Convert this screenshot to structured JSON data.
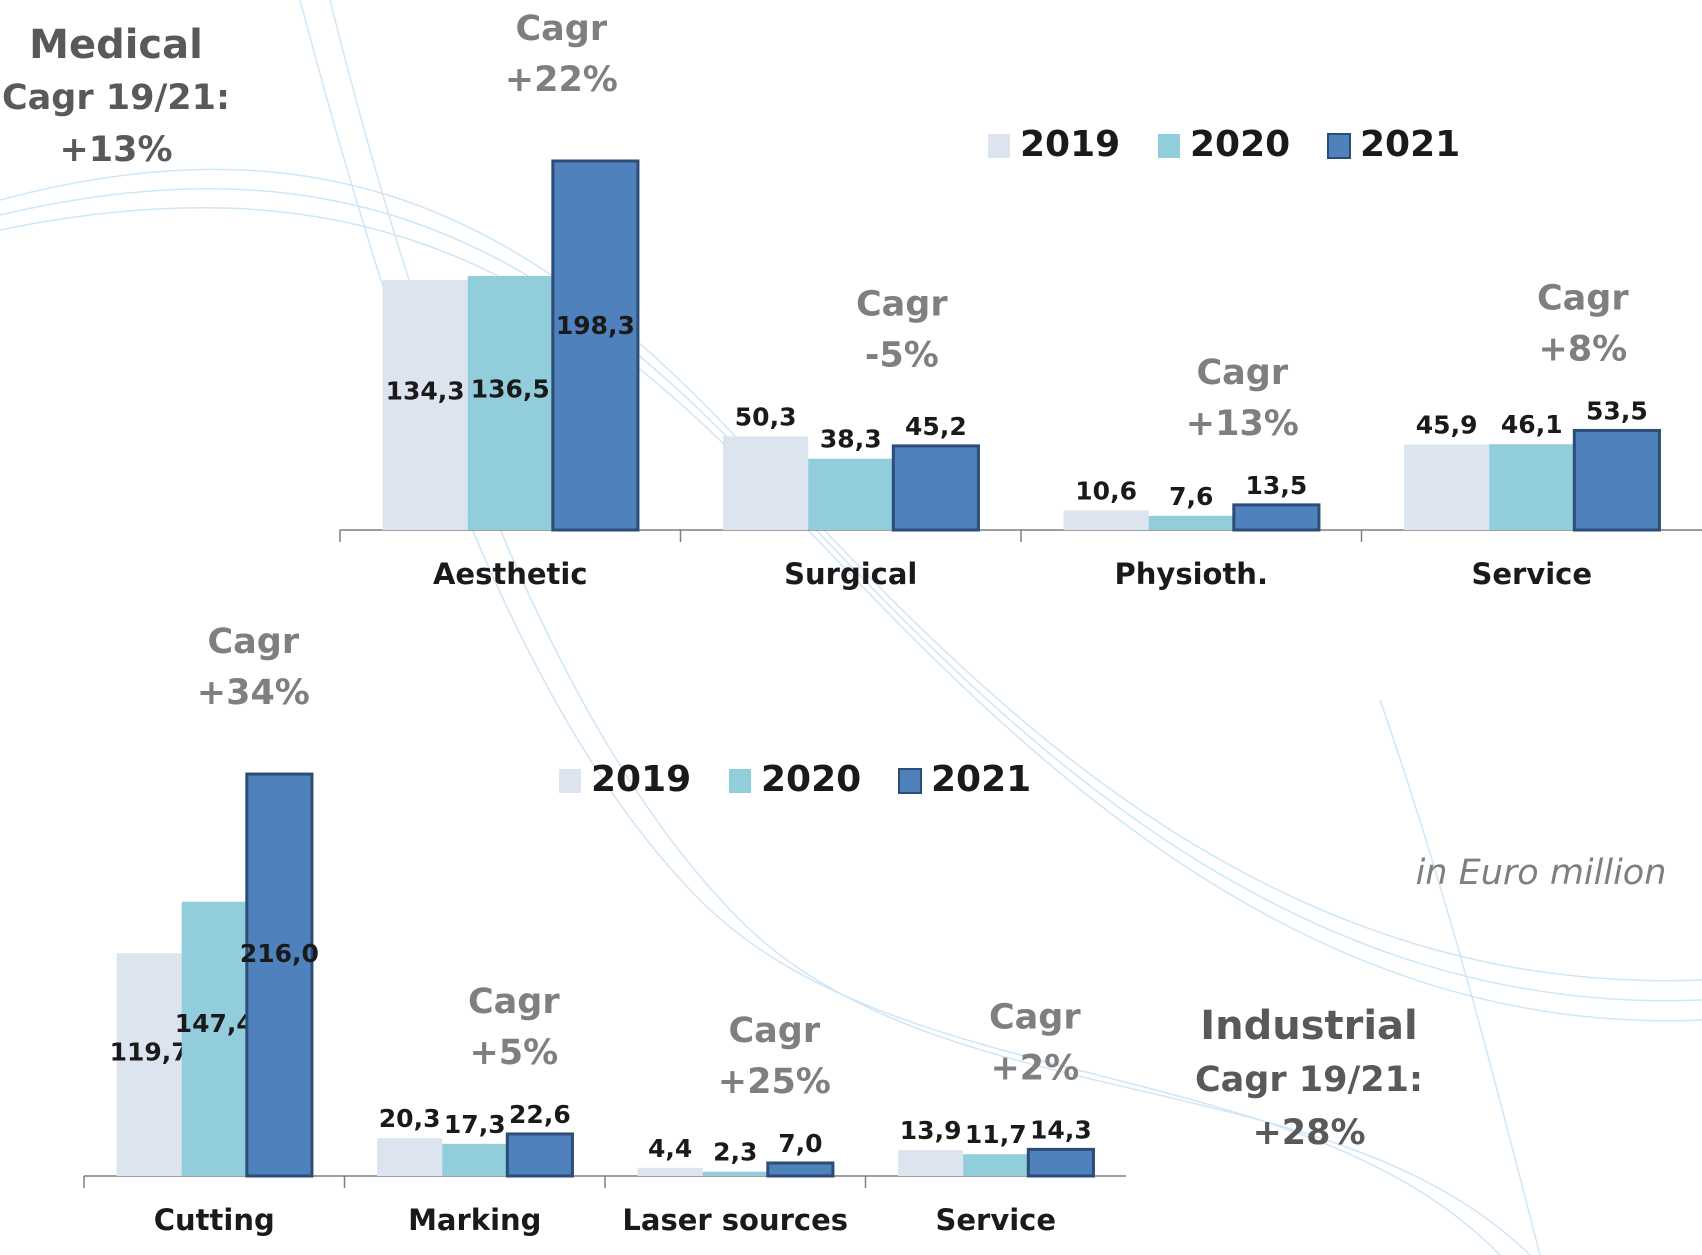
{
  "chart_data": [
    {
      "type": "bar",
      "title": "Medical",
      "subtitle": [
        "Cagr 19/21:",
        "+13%"
      ],
      "categories": [
        "Aesthetic",
        "Surgical",
        "Physioth.",
        "Service"
      ],
      "category_notes": [
        [
          "Cagr",
          "+22%"
        ],
        [
          "Cagr",
          "-5%"
        ],
        [
          "Cagr",
          "+13%"
        ],
        [
          "Cagr",
          "+8%"
        ]
      ],
      "series": [
        {
          "name": "2019",
          "color": "#dce4f0",
          "values": [
            134.3,
            50.3,
            10.6,
            45.9
          ],
          "value_labels": [
            "134,3",
            "50,3",
            "10,6",
            "45,9"
          ]
        },
        {
          "name": "2020",
          "color": "#92cddc",
          "values": [
            136.5,
            38.3,
            7.6,
            46.1
          ],
          "value_labels": [
            "136,5",
            "38,3",
            "7,6",
            "46,1"
          ]
        },
        {
          "name": "2021",
          "color": "#4f81bd",
          "values": [
            198.3,
            45.2,
            13.5,
            53.5
          ],
          "value_labels": [
            "198,3",
            "45,2",
            "13,5",
            "53,5"
          ]
        }
      ],
      "ylim": [
        0,
        230
      ],
      "legend": "top-right"
    },
    {
      "type": "bar",
      "title": "Industrial",
      "subtitle": [
        "Cagr 19/21:",
        "+28%"
      ],
      "note": "in Euro million",
      "categories": [
        "Cutting",
        "Marking",
        "Laser sources",
        "Service"
      ],
      "category_notes": [
        [
          "Cagr",
          "+34%"
        ],
        [
          "Cagr",
          "+5%"
        ],
        [
          "Cagr",
          "+25%"
        ],
        [
          "Cagr",
          "+2%"
        ]
      ],
      "series": [
        {
          "name": "2019",
          "color": "#dce4f0",
          "values": [
            119.7,
            20.3,
            4.4,
            13.9
          ],
          "value_labels": [
            "119,7",
            "20,3",
            "4,4",
            "13,9"
          ]
        },
        {
          "name": "2020",
          "color": "#92cddc",
          "values": [
            147.4,
            17.3,
            2.3,
            11.7
          ],
          "value_labels": [
            "147,4",
            "17,3",
            "2,3",
            "11,7"
          ]
        },
        {
          "name": "2021",
          "color": "#4f81bd",
          "values": [
            216.0,
            22.6,
            7.0,
            14.3
          ],
          "value_labels": [
            "216,0",
            "22,6",
            "7,0",
            "14,3"
          ]
        }
      ],
      "ylim": [
        0,
        230
      ],
      "legend": "top-center"
    }
  ]
}
